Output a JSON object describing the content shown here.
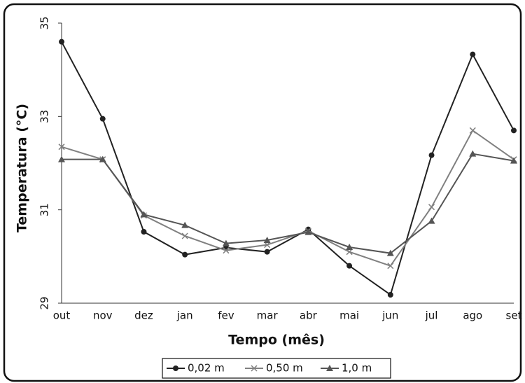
{
  "chart_data": {
    "type": "line",
    "xlabel": "Tempo (mês)",
    "ylabel": "Temperatura (°C)",
    "categories": [
      "out",
      "nov",
      "dez",
      "jan",
      "fev",
      "mar",
      "abr",
      "mai",
      "jun",
      "jul",
      "ago",
      "set"
    ],
    "series": [
      {
        "name": "0,02 m",
        "color": "#222222",
        "marker": "circle",
        "values": [
          34.6,
          32.95,
          30.53,
          30.04,
          30.19,
          30.1,
          30.58,
          29.8,
          29.18,
          32.17,
          34.33,
          32.7
        ]
      },
      {
        "name": "0,50 m",
        "color": "#808080",
        "marker": "x",
        "values": [
          32.35,
          32.08,
          30.88,
          30.44,
          30.13,
          30.25,
          30.55,
          30.1,
          29.8,
          31.06,
          32.7,
          32.08
        ]
      },
      {
        "name": "1,0 m",
        "color": "#555555",
        "marker": "triangle",
        "values": [
          32.08,
          32.08,
          30.9,
          30.67,
          30.28,
          30.35,
          30.52,
          30.2,
          30.07,
          30.76,
          32.2,
          32.05
        ]
      }
    ],
    "ylim": [
      29,
      35
    ],
    "yticks": [
      29,
      31,
      33,
      35
    ],
    "legend": "bottom"
  }
}
